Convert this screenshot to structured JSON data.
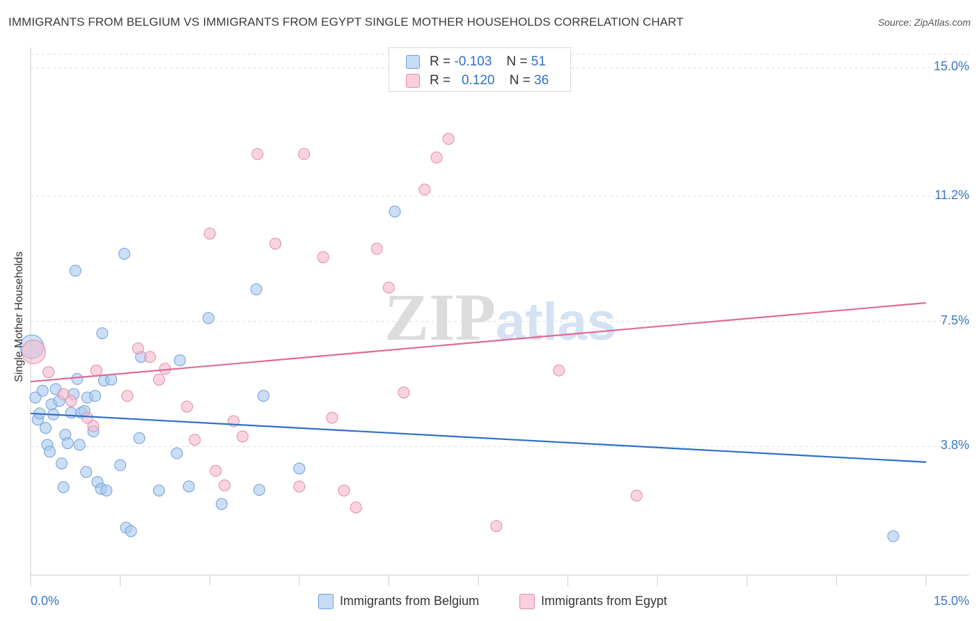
{
  "title": "IMMIGRANTS FROM BELGIUM VS IMMIGRANTS FROM EGYPT SINGLE MOTHER HOUSEHOLDS CORRELATION CHART",
  "source": "Source: ZipAtlas.com",
  "watermark": {
    "zip": "ZIP",
    "atlas": "atlas"
  },
  "legend_top": {
    "rows": [
      {
        "r_label": "R =",
        "r_value": "-0.103",
        "n_label": "N =",
        "n_value": "51",
        "color": "#a8c8ef"
      },
      {
        "r_label": "R =",
        "r_value": "0.120",
        "n_label": "N =",
        "n_value": "36",
        "color": "#f5b8cb"
      }
    ]
  },
  "bottom_legend": [
    {
      "label": "Immigrants from Belgium",
      "color": "#a8c8ef"
    },
    {
      "label": "Immigrants from Egypt",
      "color": "#f5b8cb"
    }
  ],
  "chart_data": {
    "type": "scatter",
    "ylabel": "Single Mother Households",
    "xlim": [
      0,
      15
    ],
    "ylim": [
      0,
      15.4
    ],
    "x_tick_labels": {
      "left": "0.0%",
      "right": "15.0%"
    },
    "y_ticks": [
      {
        "value": 3.8,
        "label": "3.8%"
      },
      {
        "value": 7.5,
        "label": "7.5%"
      },
      {
        "value": 11.2,
        "label": "11.2%"
      },
      {
        "value": 15.0,
        "label": "15.0%"
      }
    ],
    "grid": true,
    "legend_placement": "top-center",
    "colors": {
      "belgium_fill": "#a8c8ef",
      "belgium_stroke": "#6e9fdc",
      "belgium_line": "#2f6fc7",
      "egypt_fill": "#f5b8cb",
      "egypt_stroke": "#e08aa5",
      "egypt_line": "#e06a93",
      "grid": "#dcdcdc",
      "tick_label": "#3a76c4"
    },
    "series": [
      {
        "name": "Immigrants from Belgium",
        "r": -0.103,
        "n": 51,
        "trend": {
          "x": [
            0,
            15
          ],
          "y": [
            4.78,
            3.34
          ]
        },
        "points": [
          {
            "x": 0.02,
            "y": 6.75,
            "big": true
          },
          {
            "x": 0.08,
            "y": 5.25
          },
          {
            "x": 0.12,
            "y": 4.6
          },
          {
            "x": 0.15,
            "y": 4.78
          },
          {
            "x": 0.2,
            "y": 5.45
          },
          {
            "x": 0.25,
            "y": 4.35
          },
          {
            "x": 0.28,
            "y": 3.85
          },
          {
            "x": 0.32,
            "y": 3.65
          },
          {
            "x": 0.35,
            "y": 5.05
          },
          {
            "x": 0.38,
            "y": 4.75
          },
          {
            "x": 0.42,
            "y": 5.5
          },
          {
            "x": 0.48,
            "y": 5.15
          },
          {
            "x": 0.52,
            "y": 3.3
          },
          {
            "x": 0.55,
            "y": 2.6
          },
          {
            "x": 0.58,
            "y": 4.15
          },
          {
            "x": 0.62,
            "y": 3.9
          },
          {
            "x": 0.68,
            "y": 4.8
          },
          {
            "x": 0.72,
            "y": 5.35
          },
          {
            "x": 0.75,
            "y": 9.0
          },
          {
            "x": 0.78,
            "y": 5.8
          },
          {
            "x": 0.82,
            "y": 3.85
          },
          {
            "x": 0.85,
            "y": 4.8
          },
          {
            "x": 0.9,
            "y": 4.85
          },
          {
            "x": 0.93,
            "y": 3.05
          },
          {
            "x": 0.95,
            "y": 5.25
          },
          {
            "x": 1.05,
            "y": 4.25
          },
          {
            "x": 1.08,
            "y": 5.3
          },
          {
            "x": 1.12,
            "y": 2.75
          },
          {
            "x": 1.18,
            "y": 2.55
          },
          {
            "x": 1.2,
            "y": 7.15
          },
          {
            "x": 1.23,
            "y": 5.75
          },
          {
            "x": 1.27,
            "y": 2.5
          },
          {
            "x": 1.35,
            "y": 5.78
          },
          {
            "x": 1.5,
            "y": 3.25
          },
          {
            "x": 1.57,
            "y": 9.5
          },
          {
            "x": 1.6,
            "y": 1.4
          },
          {
            "x": 1.68,
            "y": 1.3
          },
          {
            "x": 1.82,
            "y": 4.05
          },
          {
            "x": 1.85,
            "y": 6.45
          },
          {
            "x": 2.15,
            "y": 2.5
          },
          {
            "x": 2.45,
            "y": 3.6
          },
          {
            "x": 2.5,
            "y": 6.35
          },
          {
            "x": 2.65,
            "y": 2.62
          },
          {
            "x": 2.98,
            "y": 7.6
          },
          {
            "x": 3.2,
            "y": 2.1
          },
          {
            "x": 3.78,
            "y": 8.45
          },
          {
            "x": 3.83,
            "y": 2.52
          },
          {
            "x": 3.9,
            "y": 5.3
          },
          {
            "x": 4.5,
            "y": 3.15
          },
          {
            "x": 6.1,
            "y": 10.75
          },
          {
            "x": 14.45,
            "y": 1.15
          }
        ]
      },
      {
        "name": "Immigrants from Egypt",
        "r": 0.12,
        "n": 36,
        "trend": {
          "x": [
            0,
            15
          ],
          "y": [
            5.72,
            8.05
          ]
        },
        "points": [
          {
            "x": 0.05,
            "y": 6.6,
            "big": true
          },
          {
            "x": 0.3,
            "y": 6.0
          },
          {
            "x": 0.55,
            "y": 5.35
          },
          {
            "x": 0.68,
            "y": 5.15
          },
          {
            "x": 0.95,
            "y": 4.65
          },
          {
            "x": 1.05,
            "y": 4.4
          },
          {
            "x": 1.1,
            "y": 6.05
          },
          {
            "x": 1.62,
            "y": 5.3
          },
          {
            "x": 1.8,
            "y": 6.7
          },
          {
            "x": 2.0,
            "y": 6.45
          },
          {
            "x": 2.15,
            "y": 5.78
          },
          {
            "x": 2.25,
            "y": 6.1
          },
          {
            "x": 2.62,
            "y": 4.98
          },
          {
            "x": 2.75,
            "y": 4.0
          },
          {
            "x": 3.0,
            "y": 10.1
          },
          {
            "x": 3.1,
            "y": 3.08
          },
          {
            "x": 3.25,
            "y": 2.65
          },
          {
            "x": 3.4,
            "y": 4.55
          },
          {
            "x": 3.55,
            "y": 4.1
          },
          {
            "x": 3.8,
            "y": 12.45
          },
          {
            "x": 4.1,
            "y": 9.8
          },
          {
            "x": 4.5,
            "y": 2.62
          },
          {
            "x": 4.58,
            "y": 12.45
          },
          {
            "x": 4.9,
            "y": 9.4
          },
          {
            "x": 5.05,
            "y": 4.65
          },
          {
            "x": 5.25,
            "y": 2.5
          },
          {
            "x": 5.45,
            "y": 2.0
          },
          {
            "x": 5.8,
            "y": 9.65
          },
          {
            "x": 6.0,
            "y": 8.5
          },
          {
            "x": 6.25,
            "y": 5.4
          },
          {
            "x": 6.6,
            "y": 11.4
          },
          {
            "x": 6.8,
            "y": 12.35
          },
          {
            "x": 7.0,
            "y": 12.9
          },
          {
            "x": 7.8,
            "y": 1.45
          },
          {
            "x": 8.85,
            "y": 6.05
          },
          {
            "x": 10.15,
            "y": 2.35
          }
        ]
      }
    ]
  }
}
